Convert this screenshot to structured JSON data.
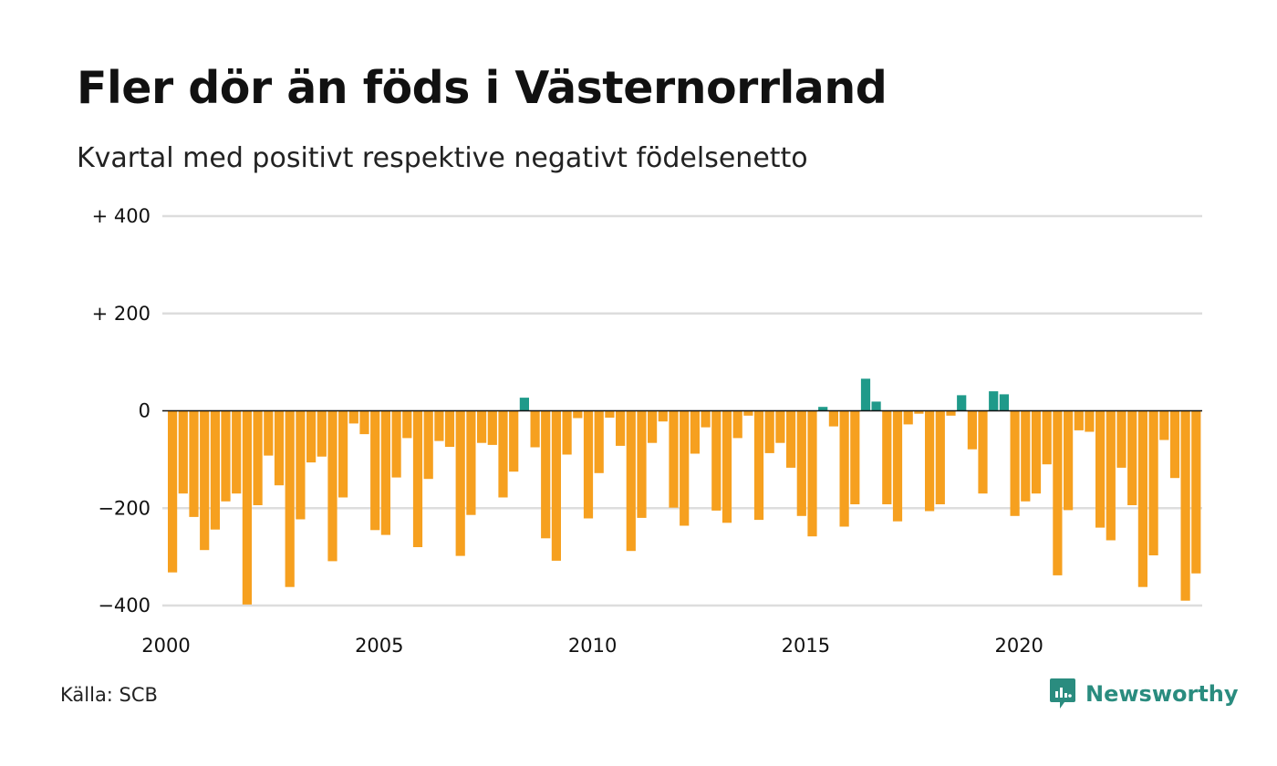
{
  "header": {
    "title": "Fler dör än föds i Västernorrland",
    "subtitle": "Kvartal med positivt respektive negativt födelsenetto"
  },
  "footer": {
    "source": "Källa: SCB",
    "brand": "Newsworthy",
    "brand_icon": "newsworthy-logo-icon"
  },
  "colors": {
    "positive": "#1f9a8a",
    "negative": "#f6a01f",
    "grid": "#dddddd",
    "zero_line": "#111111",
    "brand": "#2a8c7f"
  },
  "chart_data": {
    "type": "bar",
    "title": "Fler dör än föds i Västernorrland",
    "subtitle": "Kvartal med positivt respektive negativt födelsenetto",
    "xlabel": "",
    "ylabel": "",
    "ylim": [
      -400,
      400
    ],
    "y_ticks": [
      400,
      200,
      0,
      -200,
      -400
    ],
    "y_tick_labels": [
      "+ 400",
      "+ 200",
      "0",
      "−200",
      "−400"
    ],
    "x_ticks": [
      2000,
      2005,
      2010,
      2015,
      2020
    ],
    "x_tick_labels": [
      "2000",
      "2005",
      "2010",
      "2015",
      "2020"
    ],
    "x_start": 2000,
    "periods_per_year": 4,
    "grid": true,
    "legend": "none",
    "values": [
      -332,
      -170,
      -218,
      -286,
      -244,
      -186,
      -170,
      -398,
      -194,
      -92,
      -153,
      -362,
      -223,
      -106,
      -94,
      -309,
      -178,
      -26,
      -48,
      -245,
      -255,
      -137,
      -56,
      -280,
      -140,
      -62,
      -74,
      -298,
      -214,
      -66,
      -70,
      -178,
      -125,
      27,
      -75,
      -262,
      -308,
      -90,
      -15,
      -221,
      -128,
      -14,
      -72,
      -288,
      -220,
      -66,
      -22,
      -199,
      -236,
      -88,
      -34,
      -205,
      -230,
      -56,
      -10,
      -224,
      -87,
      -66,
      -117,
      -216,
      -258,
      8,
      -32,
      -238,
      -192,
      66,
      19,
      -192,
      -227,
      -28,
      -6,
      -206,
      -192,
      -10,
      32,
      -79,
      -170,
      40,
      34,
      -216,
      -186,
      -170,
      -110,
      -338,
      -204,
      -40,
      -43,
      -240,
      -266,
      -117,
      -194,
      -362,
      -297,
      -60,
      -138,
      -390,
      -334
    ]
  }
}
